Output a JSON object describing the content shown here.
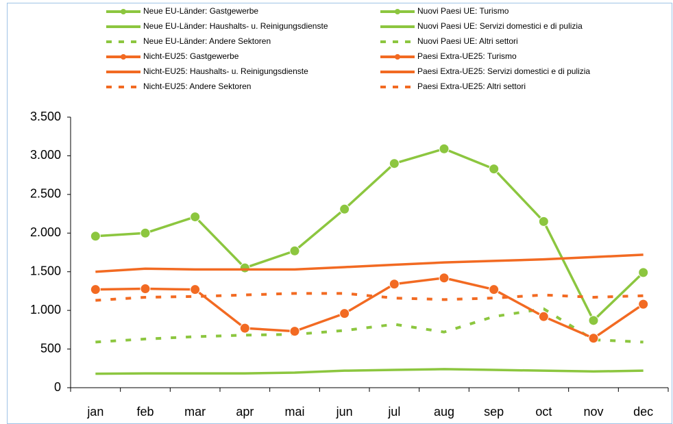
{
  "chart_data": {
    "type": "line",
    "categories": [
      "jan",
      "feb",
      "mar",
      "apr",
      "mai",
      "jun",
      "jul",
      "aug",
      "sep",
      "oct",
      "nov",
      "dec"
    ],
    "series": [
      {
        "name": "Neue EU-Länder: Gastgewerbe",
        "name_it": "Nuovi Paesi UE: Turismo",
        "color": "#8cc63f",
        "markers": true,
        "dashed": false,
        "values": [
          1960,
          2000,
          2210,
          1550,
          1770,
          2310,
          2900,
          3090,
          2830,
          2150,
          870,
          1490
        ]
      },
      {
        "name": "Neue EU-Länder: Haushalts- u. Reinigungsdienste",
        "name_it": "Nuovi Paesi UE: Servizi domestici e di pulizia",
        "color": "#8cc63f",
        "markers": false,
        "dashed": false,
        "values": [
          180,
          185,
          185,
          185,
          195,
          220,
          230,
          240,
          230,
          220,
          210,
          220
        ]
      },
      {
        "name": "Neue EU-Länder: Andere Sektoren",
        "name_it": "Nuovi Paesi UE: Altri settori",
        "color": "#8cc63f",
        "markers": false,
        "dashed": true,
        "values": [
          590,
          630,
          660,
          680,
          690,
          740,
          820,
          720,
          920,
          1020,
          620,
          590
        ]
      },
      {
        "name": "Nicht-EU25: Gastgewerbe",
        "name_it": "Paesi Extra-UE25: Turismo",
        "color": "#f26a22",
        "markers": true,
        "dashed": false,
        "values": [
          1270,
          1280,
          1270,
          770,
          730,
          960,
          1340,
          1420,
          1270,
          920,
          640,
          1080
        ]
      },
      {
        "name": "Nicht-EU25: Haushalts- u. Reinigungsdienste",
        "name_it": "Paesi Extra-UE25: Servizi domestici e di pulizia",
        "color": "#f26a22",
        "markers": false,
        "dashed": false,
        "values": [
          1500,
          1540,
          1530,
          1530,
          1530,
          1560,
          1590,
          1620,
          1640,
          1660,
          1690,
          1720
        ]
      },
      {
        "name": "Nicht-EU25: Andere Sektoren",
        "name_it": "Paesi Extra-UE25: Altri settori",
        "color": "#f26a22",
        "markers": false,
        "dashed": true,
        "values": [
          1130,
          1170,
          1180,
          1200,
          1220,
          1220,
          1160,
          1140,
          1160,
          1200,
          1170,
          1190
        ]
      }
    ],
    "ylim": [
      0,
      3500
    ],
    "yticks": [
      0,
      500,
      {
        "value": 1000,
        "label": "1.000"
      },
      {
        "value": 1500,
        "label": "1.500"
      },
      {
        "value": 2000,
        "label": "2.000"
      },
      {
        "value": 2500,
        "label": "2.500"
      },
      {
        "value": 3000,
        "label": "3.000"
      },
      {
        "value": 3500,
        "label": "3.500"
      }
    ],
    "grid": false
  }
}
